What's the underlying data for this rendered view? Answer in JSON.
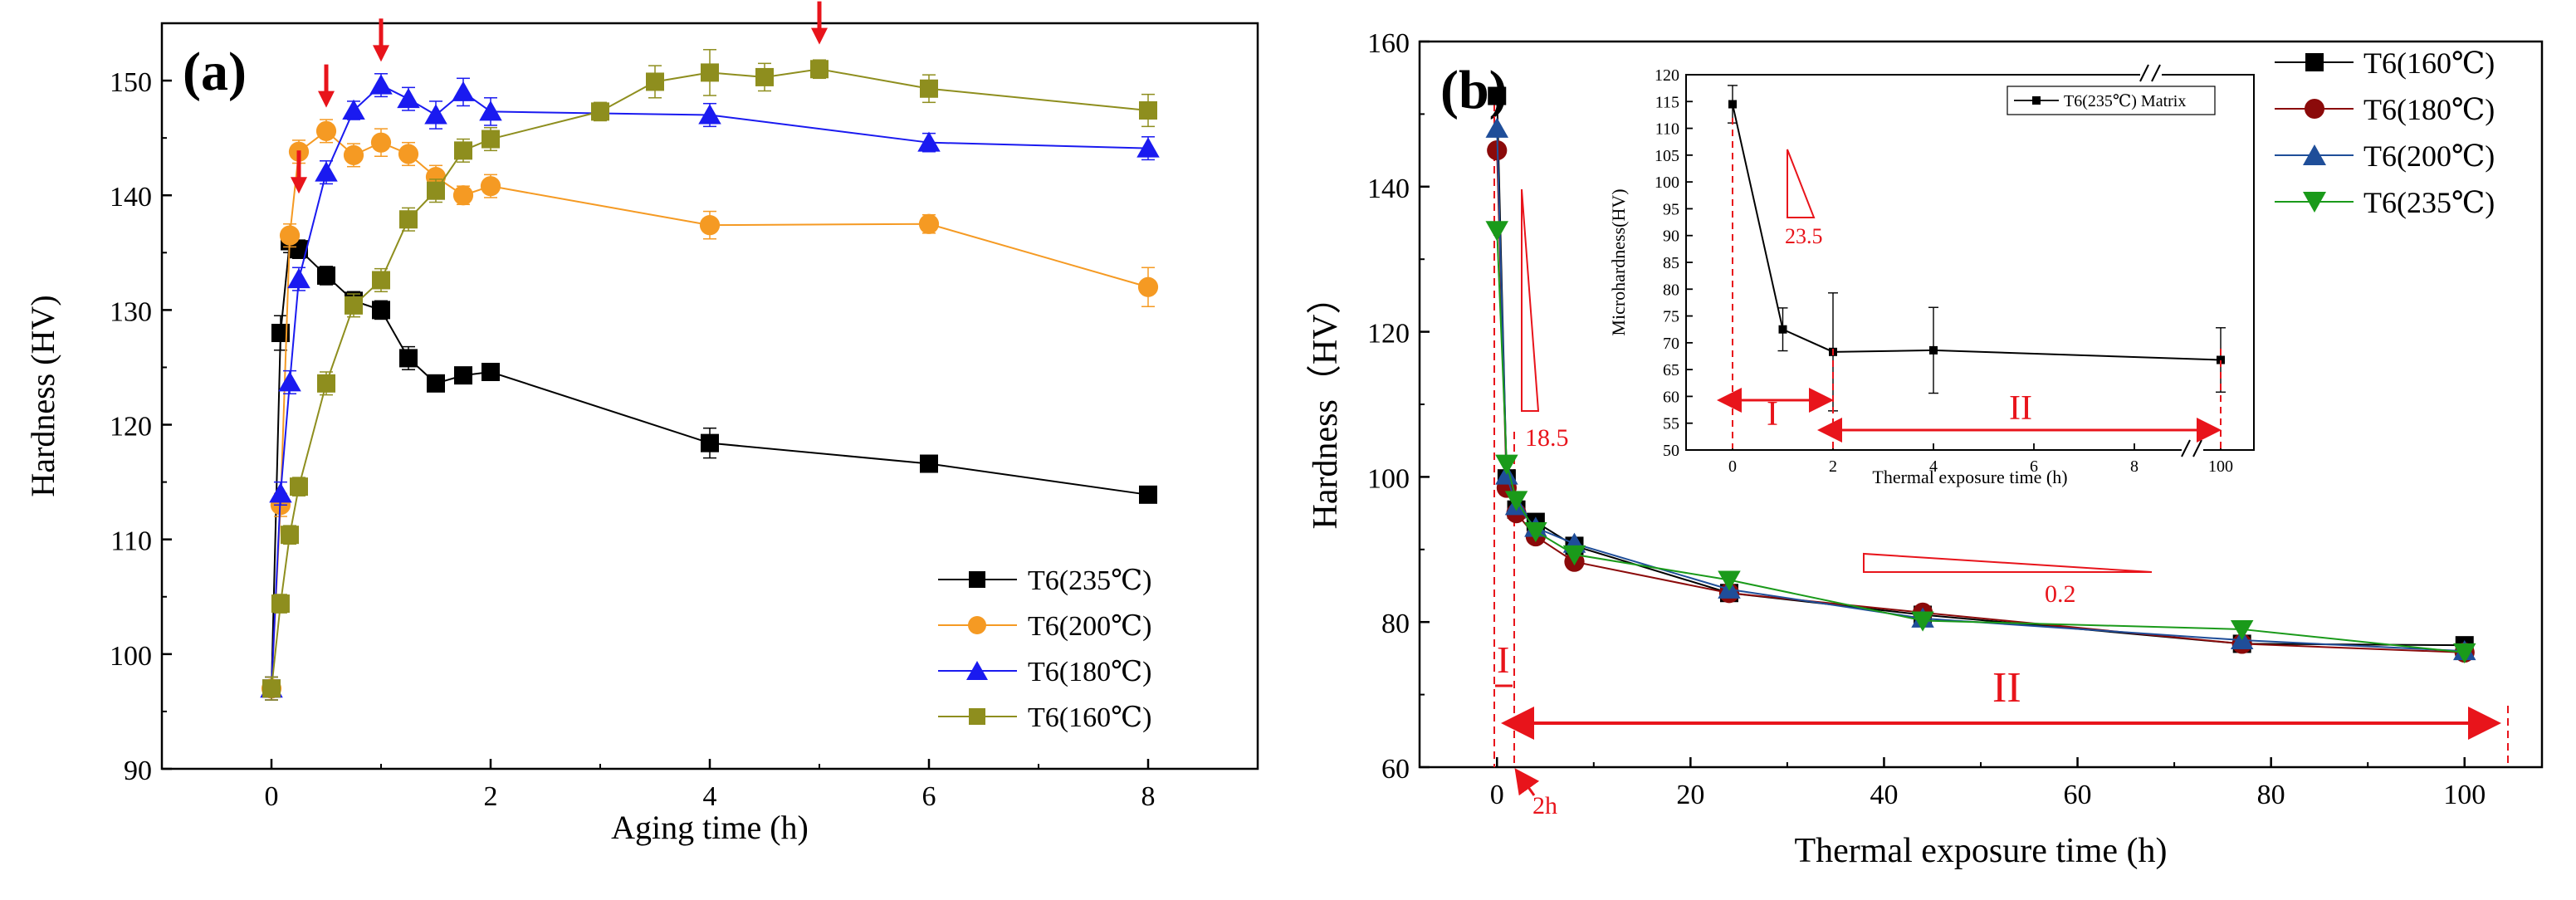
{
  "chart_data": [
    {
      "panel": "(a)",
      "type": "line",
      "xlabel": "Aging time (h)",
      "ylabel": "Hardness (HV)",
      "xlim": [
        -1,
        9
      ],
      "ylim": [
        90,
        155
      ],
      "xticks": [
        0,
        2,
        4,
        6,
        8
      ],
      "yticks": [
        90,
        100,
        110,
        120,
        130,
        140,
        150
      ],
      "legend_position": "bottom-right",
      "series": [
        {
          "name": "T6(235℃)",
          "color": "#000000",
          "marker": "square",
          "x": [
            0,
            0.083,
            0.167,
            0.25,
            0.5,
            0.75,
            1,
            1.25,
            1.5,
            1.75,
            2,
            4,
            6,
            8
          ],
          "y": [
            97,
            128,
            136,
            135.3,
            133,
            130.8,
            130,
            125.8,
            123.6,
            124.3,
            124.6,
            118.4,
            116.6,
            113.9
          ],
          "err": [
            1,
            1.5,
            1,
            0.8,
            0.8,
            0.8,
            0.8,
            1,
            0.6,
            0.6,
            0.6,
            1.3,
            0.7,
            0.5
          ]
        },
        {
          "name": "T6(200℃)",
          "color": "#F59A23",
          "marker": "circle",
          "x": [
            0,
            0.083,
            0.167,
            0.25,
            0.5,
            0.75,
            1,
            1.25,
            1.5,
            1.75,
            2,
            4,
            6,
            8
          ],
          "y": [
            97,
            113,
            136.5,
            143.8,
            145.6,
            143.5,
            144.6,
            143.6,
            141.6,
            140,
            140.8,
            137.4,
            137.5,
            132
          ],
          "err": [
            1,
            1,
            1,
            1,
            1,
            1,
            1.2,
            1,
            1,
            0.8,
            1,
            1.2,
            0.8,
            1.7
          ]
        },
        {
          "name": "T6(180℃)",
          "color": "#1A1AF0",
          "marker": "triangle",
          "x": [
            0,
            0.083,
            0.167,
            0.25,
            0.5,
            0.75,
            1,
            1.25,
            1.5,
            1.75,
            2,
            4,
            6,
            8
          ],
          "y": [
            97,
            114,
            123.7,
            132.7,
            142,
            147.4,
            149.6,
            148.4,
            147,
            149,
            147.3,
            147,
            144.6,
            144.1
          ],
          "err": [
            1,
            1,
            1,
            1,
            1,
            0.8,
            1,
            1,
            1.2,
            1.2,
            1.2,
            1,
            0.8,
            1
          ]
        },
        {
          "name": "T6(160℃)",
          "color": "#8E8E1E",
          "marker": "square",
          "x": [
            0,
            0.083,
            0.167,
            0.25,
            0.5,
            0.75,
            1,
            1.25,
            1.5,
            1.75,
            2,
            3,
            3.5,
            4,
            4.5,
            5,
            6,
            8
          ],
          "y": [
            97,
            104.4,
            110.4,
            114.6,
            123.6,
            130.4,
            132.6,
            137.9,
            140.4,
            143.9,
            144.9,
            147.3,
            149.9,
            150.7,
            150.3,
            151,
            149.3,
            147.4
          ],
          "err": [
            1,
            0.8,
            0.8,
            0.8,
            1,
            1,
            1,
            1,
            1,
            1,
            1,
            0.8,
            1.4,
            2,
            1.2,
            0.8,
            1.2,
            1.4
          ]
        }
      ],
      "annotations": {
        "peak_arrows_x": [
          0.25,
          0.5,
          1,
          5
        ]
      }
    },
    {
      "panel": "(b)",
      "type": "line",
      "xlabel": "Thermal exposure time  (h)",
      "ylabel": "Hardness（HV）",
      "xlim": [
        -8,
        108
      ],
      "ylim": [
        60,
        160
      ],
      "xticks": [
        0,
        20,
        40,
        60,
        80,
        100
      ],
      "yticks": [
        60,
        80,
        100,
        120,
        140,
        160
      ],
      "legend_position": "top-right (outside)",
      "series": [
        {
          "name": "T6(160℃)",
          "color": "#000000",
          "marker": "square",
          "x": [
            0,
            1,
            2,
            4,
            8,
            24,
            44,
            77,
            100
          ],
          "y": [
            152.5,
            99.8,
            95.5,
            93.8,
            90.5,
            84,
            81,
            77,
            76.8
          ]
        },
        {
          "name": "T6(180℃)",
          "color": "#8B0A0A",
          "marker": "circle",
          "x": [
            0,
            1,
            2,
            4,
            8,
            24,
            44,
            77,
            100
          ],
          "y": [
            145,
            98.5,
            95,
            91.8,
            88.3,
            84,
            81.3,
            77,
            75.8
          ]
        },
        {
          "name": "T6(200℃)",
          "color": "#1F4E99",
          "marker": "triangle",
          "x": [
            0,
            1,
            2,
            4,
            8,
            24,
            44,
            77,
            100
          ],
          "y": [
            148,
            100.2,
            96,
            93,
            90.8,
            84.5,
            80.5,
            77.5,
            76
          ]
        },
        {
          "name": "T6(235℃)",
          "color": "#1A9A1A",
          "marker": "triangle-down",
          "x": [
            0,
            1,
            2,
            4,
            8,
            24,
            44,
            77,
            100
          ],
          "y": [
            134,
            101.8,
            96.8,
            92.5,
            89.3,
            85.8,
            80.2,
            79,
            75.8
          ]
        }
      ],
      "annotations": {
        "stage_I": "I",
        "stage_II": "II",
        "slope_steep": "18.5",
        "slope_gentle": "0.2",
        "time_marker": "2h"
      },
      "inset": {
        "xlabel": "Thermal exposure time (h)",
        "ylabel": "Microhardness(HV)",
        "legend": "T6(235℃) Matrix",
        "xticks": [
          "0",
          "2",
          "4",
          "6",
          "8",
          "100"
        ],
        "yticks": [
          50,
          55,
          60,
          65,
          70,
          75,
          80,
          85,
          90,
          95,
          100,
          105,
          110,
          115,
          120
        ],
        "ylim": [
          50,
          120
        ],
        "x": [
          0,
          1,
          2,
          4,
          100
        ],
        "y": [
          114.5,
          72.5,
          68.3,
          68.6,
          66.8
        ],
        "err": [
          3.5,
          4,
          11,
          8,
          6
        ],
        "slope": "23.5",
        "stage_I": "I",
        "stage_II": "II"
      }
    }
  ]
}
